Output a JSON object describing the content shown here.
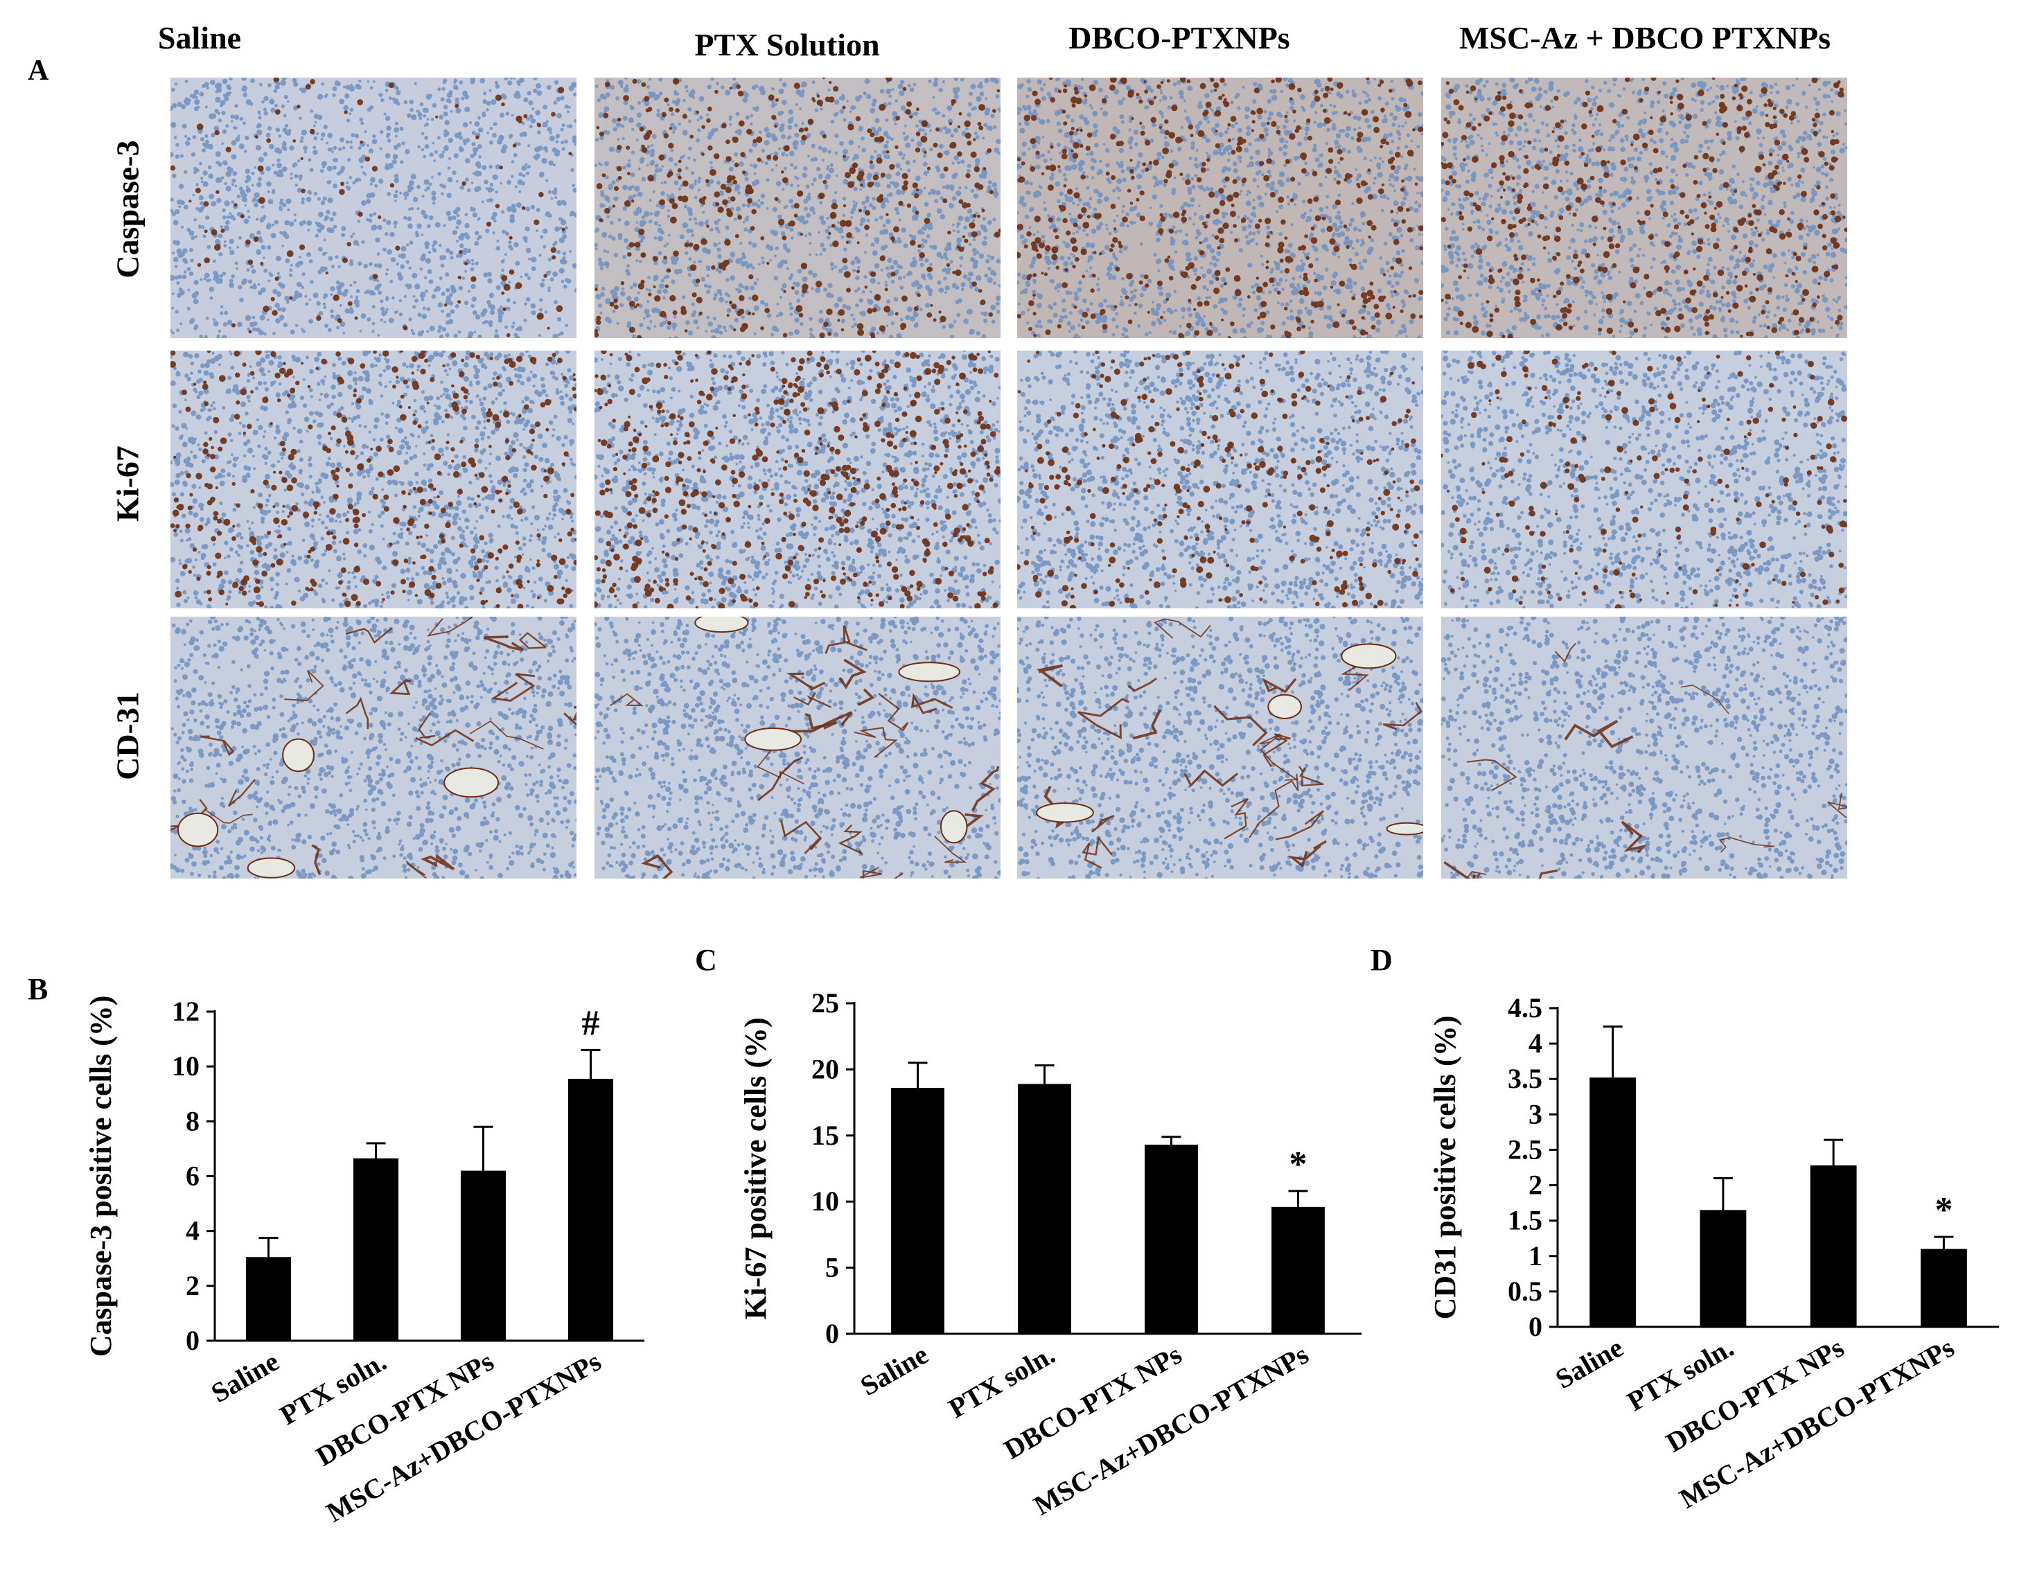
{
  "panel_a": {
    "letter": "A",
    "columns": [
      "Saline",
      "PTX Solution",
      "DBCO-PTXNPs",
      "MSC-Az + DBCO PTXNPs"
    ],
    "rows": [
      {
        "label": "Caspase-3",
        "stain": "caspase",
        "brown_levels": [
          0.15,
          0.55,
          0.7,
          0.65
        ]
      },
      {
        "label": "Ki-67",
        "stain": "ki67",
        "brown_levels": [
          0.6,
          0.8,
          0.45,
          0.3
        ]
      },
      {
        "label": "CD-31",
        "stain": "cd31",
        "brown_levels": [
          0.5,
          0.5,
          0.55,
          0.15
        ]
      }
    ],
    "colors": {
      "hematoxylin": "#6f8fc0",
      "background": "#c9d4e6",
      "dab_brown": "#6b2c12"
    }
  },
  "chart_data": [
    {
      "panel": "B",
      "type": "bar",
      "categories": [
        "Saline",
        "PTX soln.",
        "DBCO-PTX NPs",
        "MSC-Az+DBCO-PTXNPs"
      ],
      "values": [
        3.05,
        6.65,
        6.2,
        9.55
      ],
      "errors": [
        0.7,
        0.55,
        1.6,
        1.05
      ],
      "annotations": [
        "",
        "",
        "",
        "#"
      ],
      "ylabel": "Caspase-3 positive cells (%)",
      "ylim": [
        0,
        12
      ],
      "yticks": [
        "0",
        "2",
        "4",
        "6",
        "8",
        "10",
        "12"
      ],
      "bar_color": "#000000"
    },
    {
      "panel": "C",
      "type": "bar",
      "categories": [
        "Saline",
        "PTX soln.",
        "DBCO-PTX NPs",
        "MSC-Az+DBCO-PTXNPs"
      ],
      "values": [
        18.6,
        18.9,
        14.3,
        9.6
      ],
      "errors": [
        1.9,
        1.4,
        0.6,
        1.2
      ],
      "annotations": [
        "",
        "",
        "",
        "*"
      ],
      "ylabel": "Ki-67 positive cells (%)",
      "ylim": [
        0,
        25
      ],
      "yticks": [
        "0",
        "5",
        "10",
        "15",
        "20",
        "25"
      ],
      "bar_color": "#000000"
    },
    {
      "panel": "D",
      "type": "bar",
      "categories": [
        "Saline",
        "PTX soln.",
        "DBCO-PTX NPs",
        "MSC-Az+DBCO-PTXNPs"
      ],
      "values": [
        3.52,
        1.65,
        2.28,
        1.1
      ],
      "errors": [
        0.72,
        0.45,
        0.36,
        0.17
      ],
      "annotations": [
        "",
        "",
        "",
        "*"
      ],
      "ylabel": "CD31 positive cells (%)",
      "ylim": [
        0,
        4.5
      ],
      "yticks": [
        "0",
        "0.5",
        "1",
        "1.5",
        "2",
        "2.5",
        "3",
        "3.5",
        "4",
        "4.5"
      ],
      "bar_color": "#000000"
    }
  ]
}
